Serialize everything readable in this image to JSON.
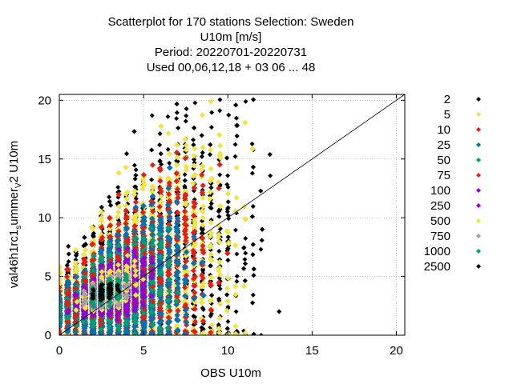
{
  "chart_data": {
    "type": "scatter",
    "title_lines": [
      "Scatterplot for  170 stations Selection: Sweden",
      "U10m [m/s]",
      "Period: 20220701-20220731",
      "Used  00,06,12,18  + 03 06 ... 48"
    ],
    "xlabel": "OBS U10m",
    "ylabel_main": "val46h1rc1",
    "ylabel_sub1": "s",
    "ylabel_mid": "ummer",
    "ylabel_sub2": "V",
    "ylabel_end": "2 U10m",
    "xlim": [
      0,
      20.5
    ],
    "ylim": [
      0,
      20.5
    ],
    "xticks": [
      0,
      5,
      10,
      15,
      20
    ],
    "yticks": [
      0,
      5,
      10,
      15,
      20
    ],
    "grid": true,
    "diagonal": true,
    "legend_position": "right",
    "legend": [
      {
        "label": "2",
        "color": "#000000"
      },
      {
        "label": "5",
        "color": "#f0e442"
      },
      {
        "label": "10",
        "color": "#e51e10"
      },
      {
        "label": "25",
        "color": "#0072b2"
      },
      {
        "label": "50",
        "color": "#009e73"
      },
      {
        "label": "75",
        "color": "#e51e10"
      },
      {
        "label": "100",
        "color": "#9400d3"
      },
      {
        "label": "250",
        "color": "#9400d3"
      },
      {
        "label": "500",
        "color": "#f0e442"
      },
      {
        "label": "750",
        "color": "#a0a0a0"
      },
      {
        "label": "1000",
        "color": "#009e73"
      },
      {
        "label": "2500",
        "color": "#000000"
      }
    ]
  }
}
